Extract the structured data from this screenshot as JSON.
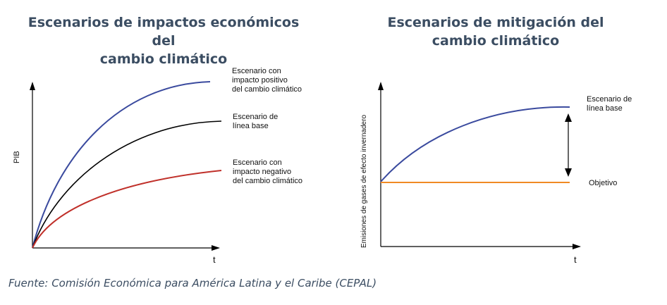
{
  "left_panel": {
    "title_line1": "Escenarios de impactos económicos del",
    "title_line2": "cambio climático",
    "y_label": "PIB",
    "x_label": "t",
    "series_labels": {
      "positive": [
        "Escenario con",
        "impacto positivo",
        "del cambio climático"
      ],
      "baseline": [
        "Escenario de",
        "línea base"
      ],
      "negative": [
        "Escenario con",
        "impacto negativo",
        "del cambio climático"
      ]
    },
    "colors": {
      "positive": "#3a4a9e",
      "baseline": "#000000",
      "negative": "#c0302a"
    }
  },
  "right_panel": {
    "title_line1": "Escenarios de mitigación del",
    "title_line2": "cambio climático",
    "y_label": "Emisiones de gases de efecto invernadero",
    "x_label": "t",
    "series_labels": {
      "baseline": [
        "Escenario de",
        "línea base"
      ],
      "target": [
        "Objetivo"
      ]
    },
    "colors": {
      "baseline": "#3a4a9e",
      "target": "#f08a24"
    }
  },
  "source": "Fuente: Comisión Económica para América Latina y el Caribe (CEPAL)"
}
